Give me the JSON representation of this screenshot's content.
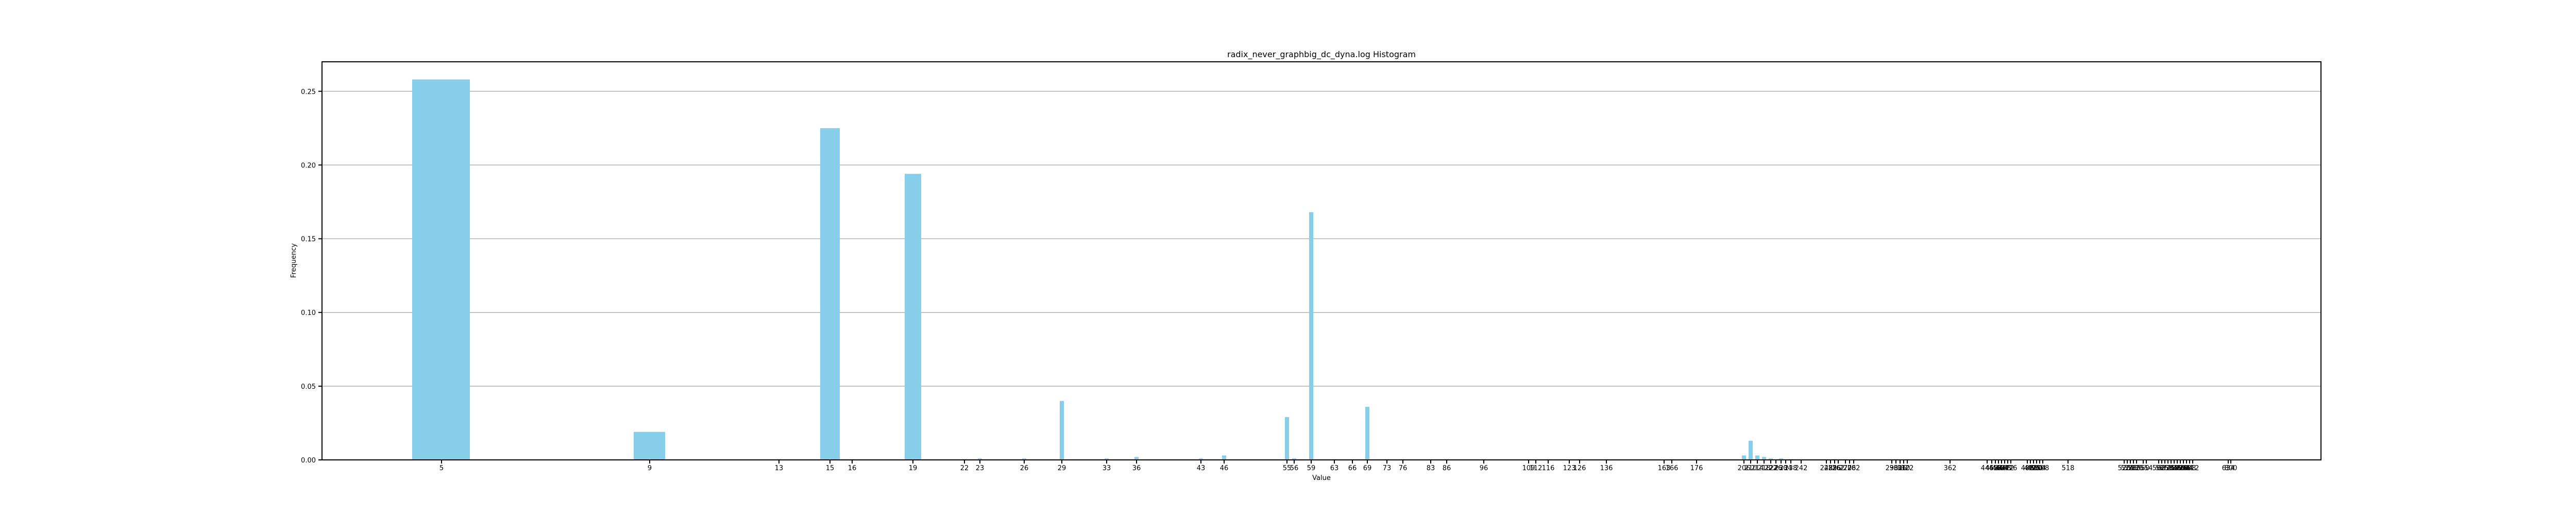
{
  "chart_data": {
    "type": "bar",
    "title": "radix_never_graphbig_dc_dyna.log Histogram",
    "xlabel": "Value",
    "ylabel": "Frequency",
    "ylim": [
      0,
      0.27
    ],
    "y_ticks": [
      0.0,
      0.05,
      0.1,
      0.15,
      0.2,
      0.25
    ],
    "y_tick_labels": [
      "0.00",
      "0.05",
      "0.10",
      "0.15",
      "0.20",
      "0.25"
    ],
    "grid": "horizontal",
    "bar_color": "#87CEEB",
    "x_tick_labels": [
      "5",
      "9",
      "13",
      "15",
      "16",
      "19",
      "22",
      "23",
      "26",
      "29",
      "33",
      "36",
      "43",
      "46",
      "55",
      "56",
      "59",
      "63",
      "66",
      "69",
      "73",
      "76",
      "83",
      "86",
      "96",
      "109",
      "112",
      "116",
      "123",
      "126",
      "136",
      "163",
      "166",
      "176",
      "206",
      "210",
      "214",
      "218",
      "222",
      "226",
      "230",
      "234",
      "238",
      "242",
      "248",
      "252",
      "256",
      "262",
      "270",
      "276",
      "282",
      "298",
      "302",
      "306",
      "310",
      "322",
      "362",
      "446",
      "452",
      "456",
      "460",
      "464",
      "468",
      "472",
      "476",
      "488",
      "492",
      "496",
      "500",
      "504",
      "508",
      "518",
      "520",
      "524",
      "528",
      "532",
      "536",
      "550",
      "554",
      "562",
      "566",
      "572",
      "576",
      "584",
      "588",
      "592",
      "596",
      "600",
      "604",
      "608",
      "612",
      "634",
      "800"
    ],
    "series": [
      {
        "values": [
          {
            "x": 5,
            "y": 0.258
          },
          {
            "x": 9,
            "y": 0.019
          },
          {
            "x": 13,
            "y": 0.0005
          },
          {
            "x": 15,
            "y": 0.225
          },
          {
            "x": 16,
            "y": 0.0005
          },
          {
            "x": 19,
            "y": 0.194
          },
          {
            "x": 22,
            "y": 0.0005
          },
          {
            "x": 23,
            "y": 0.001
          },
          {
            "x": 26,
            "y": 0.001
          },
          {
            "x": 29,
            "y": 0.04
          },
          {
            "x": 33,
            "y": 0.001
          },
          {
            "x": 36,
            "y": 0.002
          },
          {
            "x": 43,
            "y": 0.001
          },
          {
            "x": 46,
            "y": 0.003
          },
          {
            "x": 55,
            "y": 0.029
          },
          {
            "x": 56,
            "y": 0.001
          },
          {
            "x": 59,
            "y": 0.168
          },
          {
            "x": 63,
            "y": 0.0005
          },
          {
            "x": 66,
            "y": 0.0005
          },
          {
            "x": 69,
            "y": 0.036
          },
          {
            "x": 73,
            "y": 0.0005
          },
          {
            "x": 76,
            "y": 0.0005
          },
          {
            "x": 83,
            "y": 0.0005
          },
          {
            "x": 86,
            "y": 0.0005
          },
          {
            "x": 96,
            "y": 0.0005
          },
          {
            "x": 109,
            "y": 0.0005
          },
          {
            "x": 116,
            "y": 0.0005
          },
          {
            "x": 126,
            "y": 0.0005
          },
          {
            "x": 136,
            "y": 0.0005
          },
          {
            "x": 166,
            "y": 0.0005
          },
          {
            "x": 176,
            "y": 0.0005
          },
          {
            "x": 206,
            "y": 0.003
          },
          {
            "x": 210,
            "y": 0.013
          },
          {
            "x": 214,
            "y": 0.003
          },
          {
            "x": 218,
            "y": 0.002
          },
          {
            "x": 222,
            "y": 0.001
          },
          {
            "x": 230,
            "y": 0.001
          },
          {
            "x": 238,
            "y": 0.0005
          },
          {
            "x": 248,
            "y": 0.0005
          },
          {
            "x": 256,
            "y": 0.0005
          },
          {
            "x": 270,
            "y": 0.0005
          },
          {
            "x": 282,
            "y": 0.0005
          },
          {
            "x": 302,
            "y": 0.0005
          },
          {
            "x": 322,
            "y": 0.0005
          },
          {
            "x": 362,
            "y": 0.0005
          },
          {
            "x": 456,
            "y": 0.0005
          },
          {
            "x": 468,
            "y": 0.0005
          },
          {
            "x": 500,
            "y": 0.0005
          },
          {
            "x": 518,
            "y": 0.0005
          },
          {
            "x": 532,
            "y": 0.0005
          },
          {
            "x": 562,
            "y": 0.0005
          },
          {
            "x": 600,
            "y": 0.0005
          },
          {
            "x": 634,
            "y": 0.0005
          },
          {
            "x": 800,
            "y": 0.0005
          }
        ]
      }
    ]
  }
}
